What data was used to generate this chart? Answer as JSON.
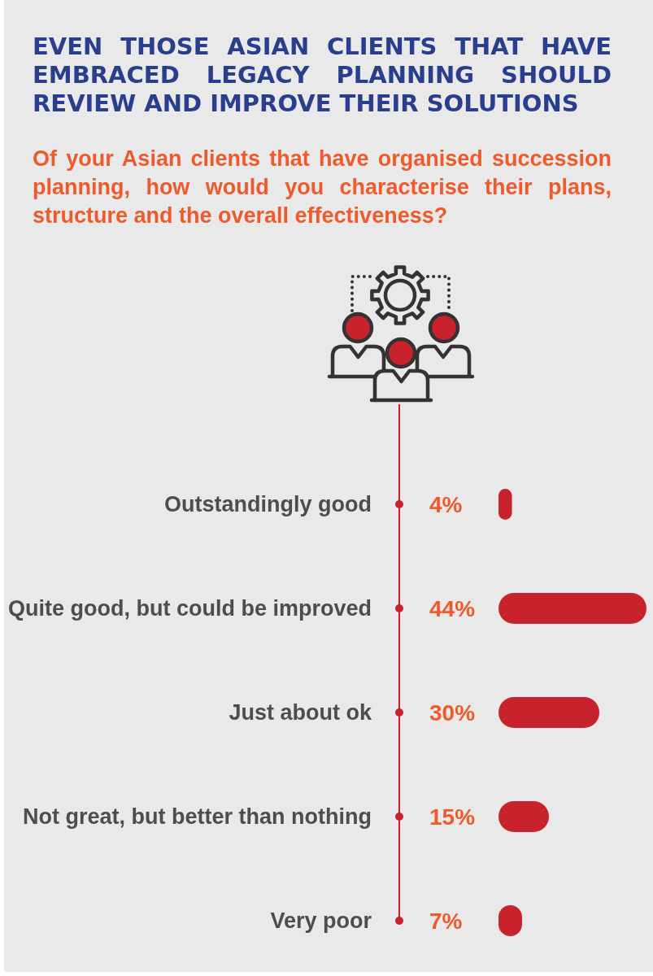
{
  "chart_data": {
    "type": "bar",
    "orientation": "horizontal",
    "title": "EVEN THOSE ASIAN CLIENTS THAT HAVE EMBRACED LEGACY PLANNING SHOULD REVIEW AND IMPROVE THEIR SOLUTIONS",
    "subtitle": "Of your Asian clients that have organised succession planning, how would you characterise their plans, structure and the overall effectiveness?",
    "categories": [
      "Outstandingly good",
      "Quite good, but could be improved",
      "Just about ok",
      "Not great, but better than nothing",
      "Very poor"
    ],
    "values": [
      4,
      44,
      30,
      15,
      7
    ],
    "value_labels": [
      "4%",
      "44%",
      "30%",
      "15%",
      "7%"
    ],
    "color": "#c8232c"
  }
}
